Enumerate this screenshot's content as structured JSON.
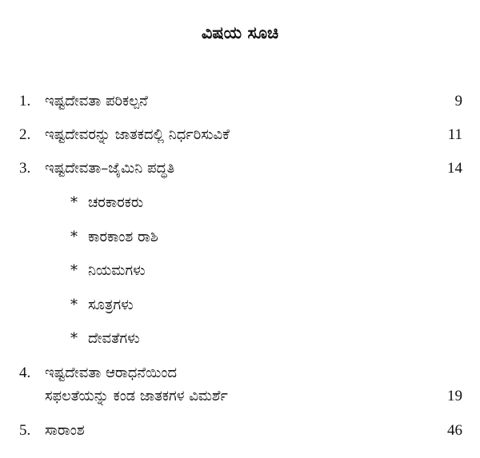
{
  "title": "ವಿಷಯ ಸೂಚಿ",
  "entries": [
    {
      "number": "1.",
      "text": "ಇಷ್ಟದೇವತಾ ಪರಿಕಲ್ಪನೆ",
      "page": "9"
    },
    {
      "number": "2.",
      "text": "ಇಷ್ಟದೇವರನ್ನು ಜಾತಕದಲ್ಲಿ ನಿರ್ಧರಿಸುವಿಕೆ",
      "page": "11"
    },
    {
      "number": "3.",
      "text": "ಇಷ್ಟದೇವತಾ–ಜೈಮಿನಿ ಪದ್ಧತಿ",
      "page": "14"
    },
    {
      "number": "4.",
      "text": "ಇಷ್ಟದೇವತಾ ಆರಾಧನೆಯಿಂದ",
      "text2": "ಸಫಲತೆಯನ್ನು ಕಂಡ ಜಾತಕಗಳ ವಿಮರ್ಶೆ",
      "page": "19"
    },
    {
      "number": "5.",
      "text": "ಸಾರಾಂಶ",
      "page": "46"
    }
  ],
  "bullet": "*",
  "subitems": [
    "ಚರಕಾರಕರು",
    "ಕಾರಕಾಂಶ ರಾಶಿ",
    "ನಿಯಮಗಳು",
    "ಸೂತ್ರಗಳು",
    "ದೇವತೆಗಳು"
  ]
}
